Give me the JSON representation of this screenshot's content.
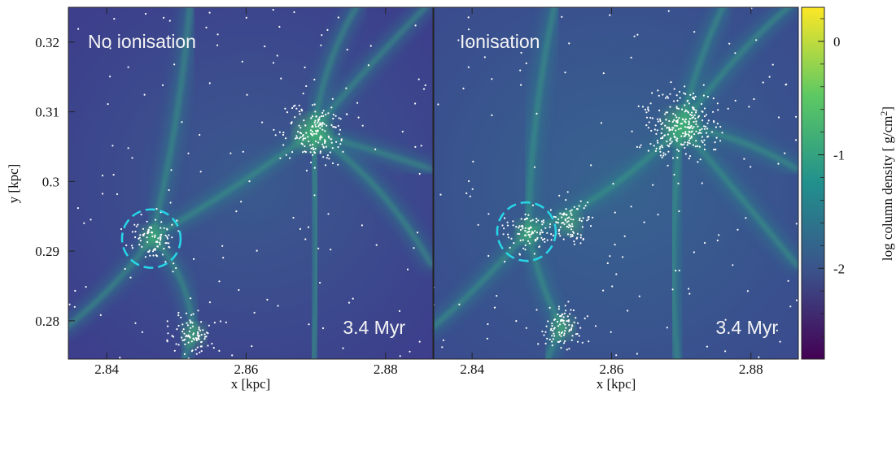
{
  "chart_data": {
    "type": "heatmap",
    "panels": [
      {
        "label": "No ionisation",
        "time": "3.4 Myr",
        "highlight_circle": {
          "x": 2.8464,
          "y": 0.2918,
          "r": 0.0042
        },
        "cluster_centers": [
          [
            2.8695,
            0.307
          ],
          [
            2.8465,
            0.292
          ],
          [
            2.8525,
            0.278
          ]
        ]
      },
      {
        "label": "Ionisation",
        "time": "3.4 Myr",
        "highlight_circle": {
          "x": 2.8478,
          "y": 0.2928,
          "r": 0.0042
        },
        "cluster_centers": [
          [
            2.87,
            0.308
          ],
          [
            2.848,
            0.2928
          ],
          [
            2.854,
            0.294
          ],
          [
            2.853,
            0.279
          ]
        ]
      }
    ],
    "xlim": [
      2.8345,
      2.8868
    ],
    "ylim": [
      0.2745,
      0.325
    ],
    "xlabel": "x [kpc]",
    "ylabel": "y [kpc]",
    "xticks": [
      2.84,
      2.86,
      2.88
    ],
    "xtick_labels": [
      "2.84",
      "2.86",
      "2.88"
    ],
    "yticks": [
      0.28,
      0.29,
      0.3,
      0.31,
      0.32
    ],
    "ytick_labels": [
      "0.28",
      "0.29",
      "0.3",
      "0.31",
      "0.32"
    ],
    "colorbar": {
      "label": "log column density [ g/cm",
      "label_sup": "2",
      "label_end": "]",
      "range": [
        -2.8,
        0.3
      ],
      "ticks": [
        0,
        -1,
        -2
      ],
      "tick_labels": [
        "0",
        "-1",
        "-2"
      ],
      "colormap": [
        "#440154",
        "#3b528b",
        "#21908d",
        "#5dc963",
        "#fde725"
      ]
    },
    "grid": false,
    "circle_color": "#26d7e8",
    "star_color": "#ffffff"
  }
}
